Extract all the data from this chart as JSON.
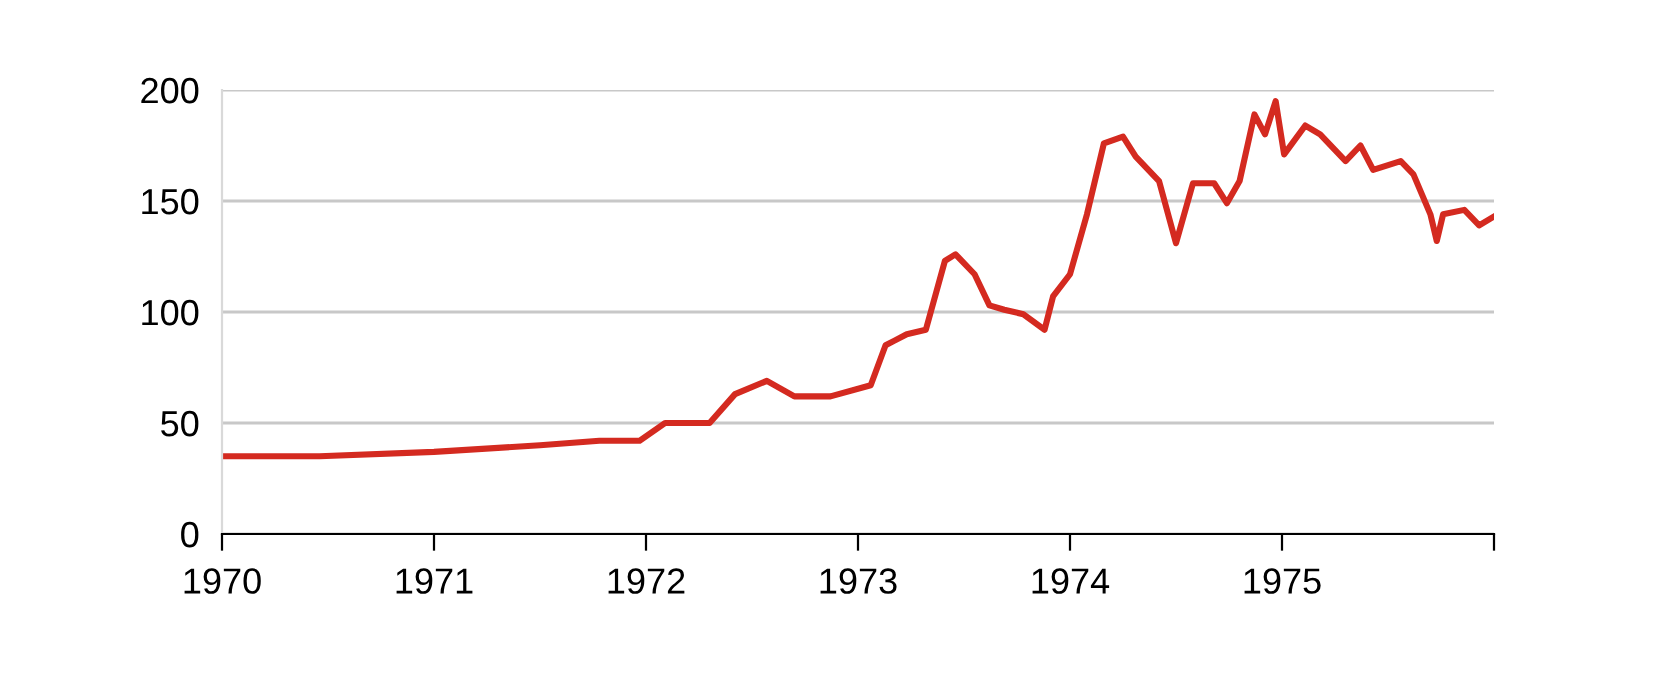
{
  "chart_data": {
    "type": "line",
    "x": [
      1970.0,
      1970.46,
      1971.0,
      1971.5,
      1971.78,
      1971.97,
      1972.09,
      1972.3,
      1972.42,
      1972.57,
      1972.7,
      1972.87,
      1973.06,
      1973.13,
      1973.17,
      1973.23,
      1973.32,
      1973.41,
      1973.46,
      1973.55,
      1973.62,
      1973.69,
      1973.78,
      1973.88,
      1973.92,
      1974.0,
      1974.08,
      1974.16,
      1974.25,
      1974.31,
      1974.42,
      1974.5,
      1974.58,
      1974.68,
      1974.74,
      1974.8,
      1974.87,
      1974.92,
      1974.97,
      1975.01,
      1975.11,
      1975.18,
      1975.3,
      1975.37,
      1975.43,
      1975.56,
      1975.62,
      1975.7,
      1975.73,
      1975.76,
      1975.86,
      1975.93,
      1976.0
    ],
    "series": [
      {
        "color": "#d42a20",
        "values": [
          35,
          35,
          37,
          40,
          42,
          42,
          50,
          50,
          63,
          69,
          62,
          62,
          67,
          85,
          87,
          90,
          92,
          123,
          126,
          117,
          103,
          101,
          99,
          92,
          107,
          117,
          144,
          176,
          179,
          170,
          159,
          131,
          158,
          158,
          149,
          159,
          189,
          180,
          195,
          171,
          184,
          180,
          168,
          175,
          164,
          168,
          162,
          144,
          132,
          144,
          146,
          139,
          143
        ]
      }
    ],
    "xlim": [
      1970,
      1976
    ],
    "xticks": [
      1970,
      1971,
      1972,
      1973,
      1974,
      1975,
      {
        "value": 1976,
        "label": null
      }
    ],
    "ylim": [
      0,
      200
    ],
    "yticks": [
      0,
      50,
      100,
      150,
      200
    ],
    "grid": "y",
    "marker": "none",
    "line_style": "solid",
    "legend": false
  }
}
